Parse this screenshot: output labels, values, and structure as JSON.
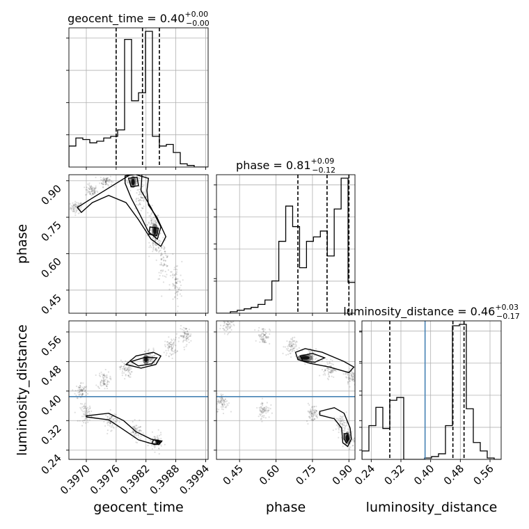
{
  "chart_data": {
    "type": "corner",
    "parameters": [
      {
        "name": "geocent_time",
        "title": "geocent_time = 0.40",
        "title_sup": "+0.00",
        "title_sub": "−0.00",
        "axis_label": "geocent_time",
        "range": [
          0.39665,
          0.39945
        ],
        "ticks": [
          0.397,
          0.3976,
          0.3982,
          0.3988,
          0.3994
        ],
        "tick_labels": [
          "0.3970",
          "0.3976",
          "0.3982",
          "0.3988",
          "0.3994"
        ],
        "quantiles": [
          0.3976,
          0.39813,
          0.39847
        ]
      },
      {
        "name": "phase",
        "title": "phase = 0.81",
        "title_sup": "+0.09",
        "title_sub": "−0.12",
        "axis_label": "phase",
        "range": [
          0.355,
          0.925
        ],
        "ticks": [
          0.45,
          0.6,
          0.75,
          0.9
        ],
        "tick_labels": [
          "0.45",
          "0.60",
          "0.75",
          "0.90"
        ],
        "quantiles": [
          0.69,
          0.81,
          0.9
        ]
      },
      {
        "name": "luminosity_distance",
        "title": "luminosity_distance = 0.46",
        "title_sup": "+0.03",
        "title_sub": "−0.17",
        "axis_label": "luminosity_distance",
        "range": [
          0.215,
          0.59
        ],
        "ticks": [
          0.24,
          0.32,
          0.4,
          0.48,
          0.56
        ],
        "tick_labels": [
          "0.24",
          "0.32",
          "0.40",
          "0.48",
          "0.56"
        ],
        "quantiles": [
          0.29,
          0.46,
          0.49
        ]
      }
    ],
    "truth": {
      "luminosity_distance": 0.385
    },
    "histograms": {
      "geocent_time": {
        "edges_start": 0.39665,
        "bin_width": 0.00014,
        "counts": [
          0.13,
          0.18,
          0.17,
          0.15,
          0.16,
          0.18,
          0.19,
          0.23,
          0.79,
          0.41,
          0.46,
          0.84,
          0.19,
          0.13,
          0.14,
          0.09,
          0.02,
          0.01,
          0.0,
          0.0
        ]
      },
      "phase": {
        "edges_start": 0.355,
        "bin_width": 0.0285,
        "counts": [
          0.0,
          0.0,
          0.01,
          0.02,
          0.03,
          0.04,
          0.06,
          0.09,
          0.22,
          0.49,
          0.73,
          0.59,
          0.31,
          0.49,
          0.52,
          0.56,
          0.39,
          0.71,
          0.92,
          0.21
        ]
      },
      "luminosity_distance": {
        "edges_start": 0.215,
        "bin_width": 0.01875,
        "counts": [
          0.06,
          0.24,
          0.37,
          0.22,
          0.42,
          0.44,
          0.0,
          0.0,
          0.0,
          0.01,
          0.02,
          0.04,
          0.24,
          0.95,
          0.96,
          0.36,
          0.12,
          0.06,
          0.01,
          0.0
        ]
      }
    },
    "scatter_clusters": {
      "phase_vs_geocent_time": [
        [
          0.3968,
          0.79,
          0.01
        ],
        [
          0.3971,
          0.86,
          0.01
        ],
        [
          0.3974,
          0.9,
          0.01
        ],
        [
          0.39795,
          0.9,
          0.01
        ],
        [
          0.3981,
          0.83,
          0.02
        ],
        [
          0.39835,
          0.72,
          0.02
        ],
        [
          0.3984,
          0.65,
          0.02
        ],
        [
          0.39855,
          0.57,
          0.03
        ],
        [
          0.3988,
          0.47,
          0.04
        ]
      ],
      "lumdist_vs_geocent_time": [
        [
          0.3969,
          0.4,
          0.01
        ],
        [
          0.39735,
          0.43,
          0.01
        ],
        [
          0.3978,
          0.46,
          0.01
        ],
        [
          0.3983,
          0.49,
          0.01
        ],
        [
          0.3987,
          0.52,
          0.01
        ],
        [
          0.399,
          0.55,
          0.01
        ],
        [
          0.397,
          0.34,
          0.01
        ],
        [
          0.3975,
          0.32,
          0.01
        ],
        [
          0.398,
          0.29,
          0.01
        ],
        [
          0.3984,
          0.26,
          0.01
        ]
      ],
      "lumdist_vs_phase": [
        [
          0.4,
          0.58,
          0.01
        ],
        [
          0.55,
          0.55,
          0.01
        ],
        [
          0.66,
          0.52,
          0.01
        ],
        [
          0.74,
          0.49,
          0.01
        ],
        [
          0.82,
          0.46,
          0.01
        ],
        [
          0.91,
          0.44,
          0.01
        ],
        [
          0.38,
          0.37,
          0.01
        ],
        [
          0.55,
          0.35,
          0.01
        ],
        [
          0.75,
          0.34,
          0.01
        ],
        [
          0.87,
          0.31,
          0.01
        ],
        [
          0.9,
          0.27,
          0.01
        ]
      ]
    },
    "contours": {
      "phase_vs_geocent_time": [
        [
          [
            0.39682,
            0.79
          ],
          [
            0.39705,
            0.82
          ],
          [
            0.39745,
            0.87
          ],
          [
            0.39792,
            0.93
          ],
          [
            0.39825,
            0.91
          ],
          [
            0.39822,
            0.86
          ],
          [
            0.39825,
            0.8
          ],
          [
            0.39842,
            0.75
          ],
          [
            0.3986,
            0.67
          ],
          [
            0.3985,
            0.63
          ],
          [
            0.3983,
            0.66
          ],
          [
            0.39805,
            0.74
          ],
          [
            0.3978,
            0.81
          ],
          [
            0.39745,
            0.84
          ],
          [
            0.39712,
            0.81
          ],
          [
            0.3969,
            0.77
          ],
          [
            0.39682,
            0.79
          ]
        ],
        [
          [
            0.39778,
            0.92
          ],
          [
            0.39812,
            0.93
          ],
          [
            0.3981,
            0.86
          ],
          [
            0.3983,
            0.79
          ],
          [
            0.3985,
            0.71
          ],
          [
            0.39843,
            0.66
          ],
          [
            0.39825,
            0.69
          ],
          [
            0.39808,
            0.76
          ],
          [
            0.3979,
            0.83
          ],
          [
            0.39778,
            0.89
          ],
          [
            0.39778,
            0.92
          ]
        ],
        [
          [
            0.39785,
            0.91
          ],
          [
            0.39802,
            0.915
          ],
          [
            0.39805,
            0.88
          ],
          [
            0.3979,
            0.875
          ],
          [
            0.39785,
            0.91
          ]
        ],
        [
          [
            0.39828,
            0.71
          ],
          [
            0.39845,
            0.705
          ],
          [
            0.39842,
            0.675
          ],
          [
            0.39826,
            0.68
          ],
          [
            0.39828,
            0.71
          ]
        ]
      ],
      "lumdist_vs_geocent_time": [
        [
          [
            0.3978,
            0.472
          ],
          [
            0.398,
            0.495
          ],
          [
            0.39835,
            0.505
          ],
          [
            0.3985,
            0.495
          ],
          [
            0.3984,
            0.472
          ],
          [
            0.3981,
            0.462
          ],
          [
            0.3978,
            0.472
          ]
        ],
        [
          [
            0.3979,
            0.48
          ],
          [
            0.3982,
            0.492
          ],
          [
            0.39842,
            0.49
          ],
          [
            0.39832,
            0.474
          ],
          [
            0.39805,
            0.468
          ],
          [
            0.3979,
            0.48
          ]
        ],
        [
          [
            0.397,
            0.333
          ],
          [
            0.39745,
            0.34
          ],
          [
            0.39775,
            0.32
          ],
          [
            0.398,
            0.29
          ],
          [
            0.3983,
            0.27
          ],
          [
            0.3985,
            0.262
          ],
          [
            0.39838,
            0.255
          ],
          [
            0.39805,
            0.268
          ],
          [
            0.3977,
            0.3
          ],
          [
            0.39745,
            0.322
          ],
          [
            0.397,
            0.33
          ]
        ],
        [
          [
            0.39835,
            0.268
          ],
          [
            0.39852,
            0.265
          ],
          [
            0.39846,
            0.255
          ],
          [
            0.39832,
            0.258
          ],
          [
            0.39835,
            0.268
          ]
        ]
      ],
      "lumdist_vs_phase": [
        [
          [
            0.68,
            0.505
          ],
          [
            0.72,
            0.515
          ],
          [
            0.79,
            0.505
          ],
          [
            0.88,
            0.48
          ],
          [
            0.92,
            0.465
          ],
          [
            0.9,
            0.45
          ],
          [
            0.82,
            0.465
          ],
          [
            0.74,
            0.475
          ],
          [
            0.69,
            0.485
          ],
          [
            0.68,
            0.505
          ]
        ],
        [
          [
            0.7,
            0.495
          ],
          [
            0.75,
            0.502
          ],
          [
            0.8,
            0.49
          ],
          [
            0.76,
            0.478
          ],
          [
            0.71,
            0.482
          ],
          [
            0.7,
            0.495
          ]
        ],
        [
          [
            0.78,
            0.345
          ],
          [
            0.84,
            0.355
          ],
          [
            0.88,
            0.34
          ],
          [
            0.905,
            0.3
          ],
          [
            0.91,
            0.27
          ],
          [
            0.895,
            0.25
          ],
          [
            0.875,
            0.26
          ],
          [
            0.87,
            0.3
          ],
          [
            0.84,
            0.325
          ],
          [
            0.78,
            0.335
          ],
          [
            0.78,
            0.345
          ]
        ],
        [
          [
            0.88,
            0.285
          ],
          [
            0.895,
            0.285
          ],
          [
            0.9,
            0.27
          ],
          [
            0.89,
            0.26
          ],
          [
            0.88,
            0.27
          ],
          [
            0.88,
            0.285
          ]
        ]
      ]
    },
    "filled_blobs": {
      "phase_vs_geocent_time": [
        [
          0.39794,
          0.895,
          4e-05,
          0.015
        ],
        [
          0.39838,
          0.695,
          4e-05,
          0.018
        ]
      ],
      "lumdist_vs_geocent_time": [
        [
          0.3982,
          0.485,
          4e-05,
          0.008
        ],
        [
          0.39843,
          0.262,
          3e-05,
          0.005
        ]
      ],
      "lumdist_vs_phase": [
        [
          0.72,
          0.49,
          0.02,
          0.006
        ],
        [
          0.893,
          0.273,
          0.008,
          0.01
        ]
      ]
    }
  }
}
